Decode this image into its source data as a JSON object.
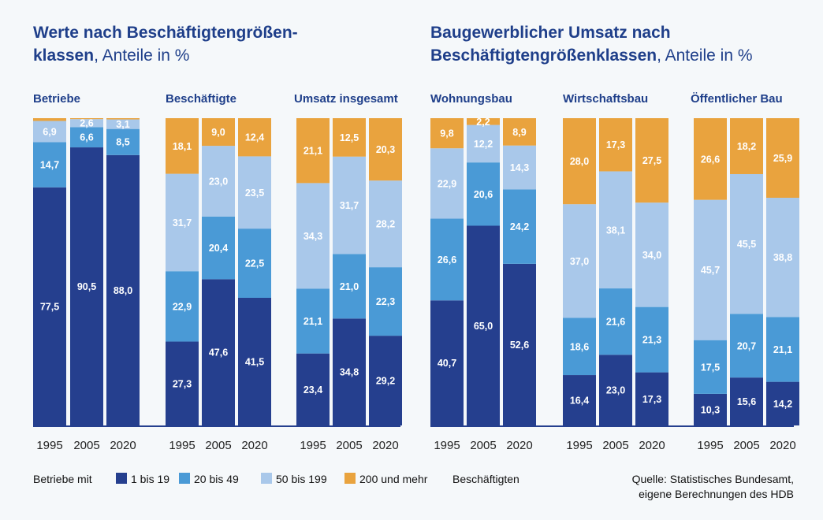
{
  "colors": {
    "c1": "#253f8e",
    "c2": "#4a9ad6",
    "c3": "#a9c8ea",
    "c4": "#e9a33e",
    "baseline": "#253f8e"
  },
  "chart_data": {
    "type": "bar",
    "stacked": true,
    "unit": "Anteile in %",
    "years": [
      "1995",
      "2005",
      "2020"
    ],
    "series_order": [
      "1 bis 19",
      "20 bis 49",
      "50 bis 199",
      "200 und mehr"
    ],
    "panels": [
      {
        "title_bold_1": "Werte nach Beschäftigtengrößen-",
        "title_bold_2": "klassen",
        "title_light_2": ", Anteile in %",
        "groups": [
          {
            "name": "Betriebe",
            "labels": [
              [
                "77,5",
                "14,7",
                "6,9",
                ""
              ],
              [
                "90,5",
                "6,6",
                "2,6",
                ""
              ],
              [
                "88,0",
                "8,5",
                "3,1",
                ""
              ]
            ],
            "values": [
              [
                77.5,
                14.7,
                6.9,
                0.9
              ],
              [
                90.5,
                6.6,
                2.6,
                0.3
              ],
              [
                88.0,
                8.5,
                3.1,
                0.4
              ]
            ]
          },
          {
            "name": "Beschäftigte",
            "labels": [
              [
                "27,3",
                "22,9",
                "31,7",
                "18,1"
              ],
              [
                "47,6",
                "20,4",
                "23,0",
                "9,0"
              ],
              [
                "41,5",
                "22,5",
                "23,5",
                "12,4"
              ]
            ],
            "values": [
              [
                27.3,
                22.9,
                31.7,
                18.1
              ],
              [
                47.6,
                20.4,
                23.0,
                9.0
              ],
              [
                41.5,
                22.5,
                23.5,
                12.4
              ]
            ]
          },
          {
            "name": "Umsatz insgesamt",
            "labels": [
              [
                "23,4",
                "21,1",
                "34,3",
                "21,1"
              ],
              [
                "34,8",
                "21,0",
                "31,7",
                "12,5"
              ],
              [
                "29,2",
                "22,3",
                "28,2",
                "20,3"
              ]
            ],
            "values": [
              [
                23.4,
                21.1,
                34.3,
                21.1
              ],
              [
                34.8,
                21.0,
                31.7,
                12.5
              ],
              [
                29.2,
                22.3,
                28.2,
                20.3
              ]
            ]
          }
        ]
      },
      {
        "title_bold_1": "Baugewerblicher Umsatz nach",
        "title_bold_2": "Beschäftigtengrößenklassen",
        "title_light_2": ", Anteile in %",
        "groups": [
          {
            "name": "Wohnungsbau",
            "labels": [
              [
                "40,7",
                "26,6",
                "22,9",
                "9,8"
              ],
              [
                "65,0",
                "20,6",
                "12,2",
                "2,2"
              ],
              [
                "52,6",
                "24,2",
                "14,3",
                "8,9"
              ]
            ],
            "values": [
              [
                40.7,
                26.6,
                22.9,
                9.8
              ],
              [
                65.0,
                20.6,
                12.2,
                2.2
              ],
              [
                52.6,
                24.2,
                14.3,
                8.9
              ]
            ]
          },
          {
            "name": "Wirtschaftsbau",
            "labels": [
              [
                "16,4",
                "18,6",
                "37,0",
                "28,0"
              ],
              [
                "23,0",
                "21,6",
                "38,1",
                "17,3"
              ],
              [
                "17,3",
                "21,3",
                "34,0",
                "27,5"
              ]
            ],
            "values": [
              [
                16.4,
                18.6,
                37.0,
                28.0
              ],
              [
                23.0,
                21.6,
                38.1,
                17.3
              ],
              [
                17.3,
                21.3,
                34.0,
                27.5
              ]
            ]
          },
          {
            "name": "Öffentlicher Bau",
            "labels": [
              [
                "10,3",
                "17,5",
                "45,7",
                "26,6"
              ],
              [
                "15,6",
                "20,7",
                "45,5",
                "18,2"
              ],
              [
                "14,2",
                "21,1",
                "38,8",
                "25,9"
              ]
            ],
            "values": [
              [
                10.3,
                17.5,
                45.7,
                26.6
              ],
              [
                15.6,
                20.7,
                45.5,
                18.2
              ],
              [
                14.2,
                21.1,
                38.8,
                25.9
              ]
            ]
          }
        ]
      }
    ],
    "legend": {
      "prefix": "Betriebe mit",
      "entries": [
        "1 bis 19",
        "20 bis 49",
        "50 bis 199",
        "200 und mehr"
      ],
      "suffix": "Beschäftigten"
    },
    "source_1": "Quelle: Statistisches Bundesamt,",
    "source_2": "eigene Berechnungen des HDB"
  }
}
